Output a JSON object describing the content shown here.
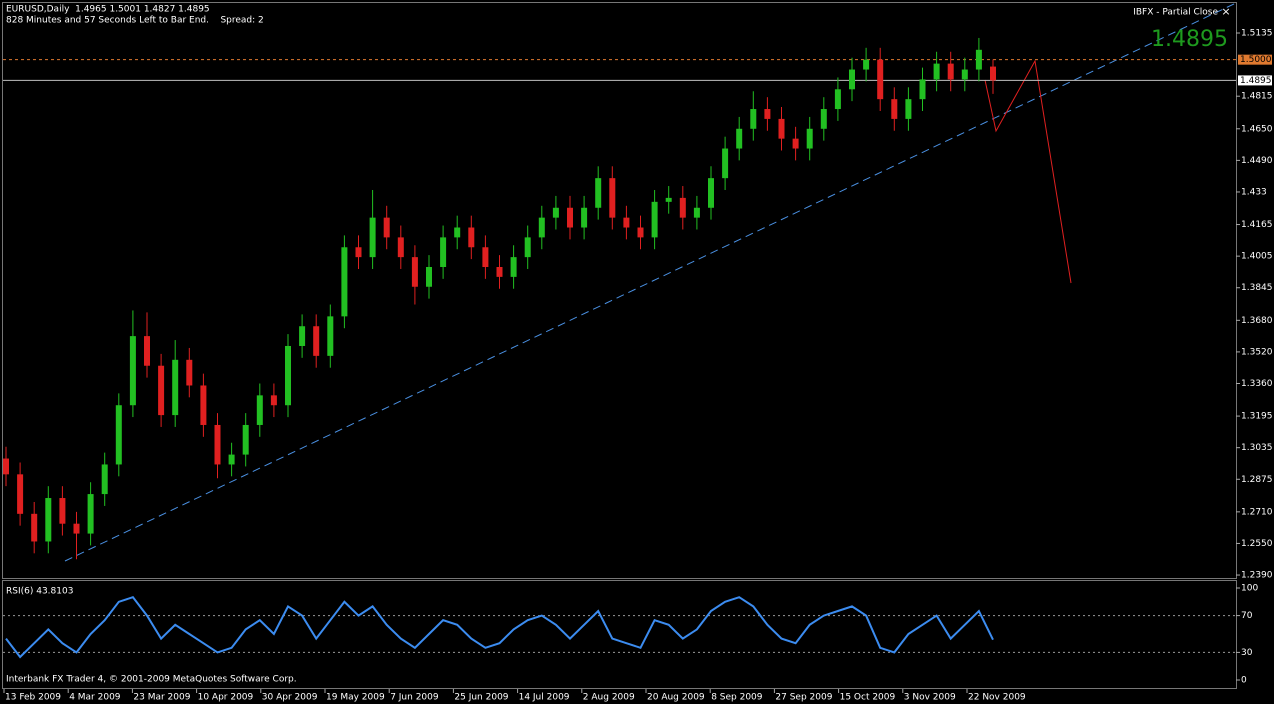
{
  "chart_data": {
    "type": "candlestick",
    "header": [
      "EURUSD,Daily  1.4965 1.5001 1.4827 1.4895",
      "828 Minutes and 57 Seconds Left to Bar End.    Spread: 2"
    ],
    "ea_label": "IBFX - Partial Close",
    "close_button": "×",
    "bid_text": "1.4895",
    "footer": "Interbank FX Trader 4, © 2001-2009 MetaQuotes Software Corp.",
    "up_color": "#22c022",
    "down_color": "#e02020",
    "ylim": [
      1.2375,
      1.5287
    ],
    "yticks": [
      1.5135,
      1.4815,
      {
        "value": 1.465,
        "label": "1.4650"
      },
      {
        "value": 1.449,
        "label": "1.4490"
      },
      1.433,
      1.4165,
      1.4005,
      1.3845,
      {
        "value": 1.368,
        "label": "1.3680"
      },
      {
        "value": 1.352,
        "label": "1.3520"
      },
      {
        "value": 1.336,
        "label": "1.3360"
      },
      1.3195,
      1.3035,
      1.2875,
      {
        "value": 1.271,
        "label": "1.2710"
      },
      {
        "value": 1.255,
        "label": "1.2550"
      },
      {
        "value": 1.239,
        "label": "1.2390"
      }
    ],
    "levels": [
      {
        "value": 1.5,
        "label": "1.5000",
        "color": "#e07a30",
        "style": "dashed"
      },
      {
        "value": 1.4895,
        "label": "1.4895",
        "color": "#c0c0c0",
        "style": "solid"
      }
    ],
    "categories": [
      "13 Feb 2009",
      "4 Mar 2009",
      "23 Mar 2009",
      "10 Apr 2009",
      "30 Apr 2009",
      "19 May 2009",
      "7 Jun 2009",
      "25 Jun 2009",
      "14 Jul 2009",
      "2 Aug 2009",
      "20 Aug 2009",
      "8 Sep 2009",
      "27 Sep 2009",
      "15 Oct 2009",
      "3 Nov 2009",
      "22 Nov 2009"
    ],
    "candles": [
      [
        1.298,
        1.304,
        1.284,
        1.29
      ],
      [
        1.29,
        1.296,
        1.264,
        1.27
      ],
      [
        1.27,
        1.276,
        1.25,
        1.256
      ],
      [
        1.256,
        1.284,
        1.25,
        1.278
      ],
      [
        1.278,
        1.284,
        1.259,
        1.265
      ],
      [
        1.265,
        1.271,
        1.247,
        1.26
      ],
      [
        1.26,
        1.286,
        1.254,
        1.28
      ],
      [
        1.28,
        1.301,
        1.274,
        1.295
      ],
      [
        1.295,
        1.331,
        1.289,
        1.325
      ],
      [
        1.325,
        1.373,
        1.319,
        1.36
      ],
      [
        1.36,
        1.372,
        1.339,
        1.345
      ],
      [
        1.345,
        1.351,
        1.314,
        1.32
      ],
      [
        1.32,
        1.358,
        1.314,
        1.348
      ],
      [
        1.348,
        1.354,
        1.329,
        1.335
      ],
      [
        1.335,
        1.341,
        1.309,
        1.315
      ],
      [
        1.315,
        1.321,
        1.288,
        1.295
      ],
      [
        1.295,
        1.306,
        1.289,
        1.3
      ],
      [
        1.3,
        1.321,
        1.294,
        1.315
      ],
      [
        1.315,
        1.336,
        1.309,
        1.33
      ],
      [
        1.33,
        1.336,
        1.319,
        1.325
      ],
      [
        1.325,
        1.361,
        1.319,
        1.355
      ],
      [
        1.355,
        1.371,
        1.349,
        1.365
      ],
      [
        1.365,
        1.371,
        1.344,
        1.35
      ],
      [
        1.35,
        1.376,
        1.344,
        1.37
      ],
      [
        1.37,
        1.411,
        1.364,
        1.405
      ],
      [
        1.405,
        1.411,
        1.394,
        1.4
      ],
      [
        1.4,
        1.434,
        1.394,
        1.42
      ],
      [
        1.42,
        1.426,
        1.404,
        1.41
      ],
      [
        1.41,
        1.416,
        1.394,
        1.4
      ],
      [
        1.4,
        1.406,
        1.376,
        1.385
      ],
      [
        1.385,
        1.401,
        1.379,
        1.395
      ],
      [
        1.395,
        1.416,
        1.389,
        1.41
      ],
      [
        1.41,
        1.421,
        1.404,
        1.415
      ],
      [
        1.415,
        1.421,
        1.399,
        1.405
      ],
      [
        1.405,
        1.411,
        1.389,
        1.395
      ],
      [
        1.395,
        1.401,
        1.384,
        1.39
      ],
      [
        1.39,
        1.406,
        1.384,
        1.4
      ],
      [
        1.4,
        1.416,
        1.394,
        1.41
      ],
      [
        1.41,
        1.426,
        1.404,
        1.42
      ],
      [
        1.42,
        1.431,
        1.414,
        1.425
      ],
      [
        1.425,
        1.431,
        1.409,
        1.415
      ],
      [
        1.415,
        1.431,
        1.409,
        1.425
      ],
      [
        1.425,
        1.446,
        1.419,
        1.44
      ],
      [
        1.44,
        1.446,
        1.414,
        1.42
      ],
      [
        1.42,
        1.426,
        1.409,
        1.415
      ],
      [
        1.415,
        1.421,
        1.404,
        1.41
      ],
      [
        1.41,
        1.434,
        1.404,
        1.428
      ],
      [
        1.428,
        1.436,
        1.422,
        1.43
      ],
      [
        1.43,
        1.436,
        1.414,
        1.42
      ],
      [
        1.42,
        1.431,
        1.414,
        1.425
      ],
      [
        1.425,
        1.446,
        1.419,
        1.44
      ],
      [
        1.44,
        1.461,
        1.434,
        1.455
      ],
      [
        1.455,
        1.471,
        1.449,
        1.465
      ],
      [
        1.465,
        1.484,
        1.459,
        1.475
      ],
      [
        1.475,
        1.481,
        1.464,
        1.47
      ],
      [
        1.47,
        1.476,
        1.454,
        1.46
      ],
      [
        1.46,
        1.466,
        1.449,
        1.455
      ],
      [
        1.455,
        1.471,
        1.449,
        1.465
      ],
      [
        1.465,
        1.481,
        1.459,
        1.475
      ],
      [
        1.475,
        1.491,
        1.469,
        1.485
      ],
      [
        1.485,
        1.501,
        1.479,
        1.495
      ],
      [
        1.495,
        1.506,
        1.489,
        1.5
      ],
      [
        1.5,
        1.506,
        1.474,
        1.48
      ],
      [
        1.48,
        1.486,
        1.464,
        1.47
      ],
      [
        1.47,
        1.486,
        1.464,
        1.48
      ],
      [
        1.48,
        1.496,
        1.474,
        1.49
      ],
      [
        1.49,
        1.504,
        1.484,
        1.498
      ],
      [
        1.498,
        1.504,
        1.484,
        1.49
      ],
      [
        1.49,
        1.501,
        1.484,
        1.495
      ],
      [
        1.495,
        1.511,
        1.489,
        1.505
      ],
      [
        1.4965,
        1.5001,
        1.4827,
        1.4895
      ]
    ],
    "rsi": {
      "title": "RSI(6) 43.8103",
      "color": "#3c8cf0",
      "ylim": [
        0,
        100
      ],
      "yticks": [
        100,
        70,
        30,
        0
      ],
      "levels": [
        70,
        30
      ],
      "values": [
        45,
        25,
        40,
        55,
        40,
        30,
        50,
        65,
        85,
        90,
        70,
        45,
        60,
        50,
        40,
        30,
        35,
        55,
        65,
        50,
        80,
        70,
        45,
        65,
        85,
        70,
        80,
        60,
        45,
        35,
        50,
        65,
        60,
        45,
        35,
        40,
        55,
        65,
        70,
        60,
        45,
        60,
        75,
        45,
        40,
        35,
        65,
        60,
        45,
        55,
        75,
        85,
        90,
        80,
        60,
        45,
        40,
        60,
        70,
        75,
        80,
        70,
        35,
        30,
        50,
        60,
        70,
        45,
        60,
        75,
        43.8103
      ]
    }
  }
}
